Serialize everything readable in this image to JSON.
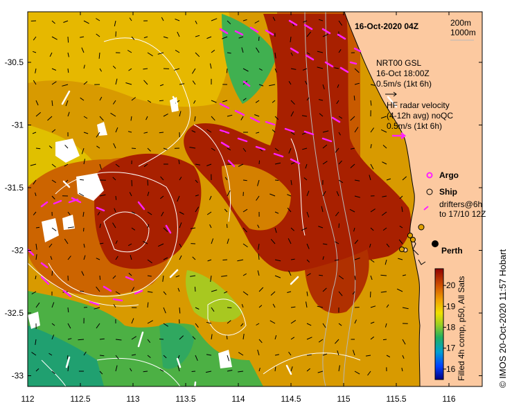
{
  "title": "16-Oct-2020 04Z",
  "isobath_legend": [
    "200m",
    "1000m"
  ],
  "nrt_legend": [
    "NRT00 GSL",
    "16-Oct 18:00Z",
    "0.5m/s (1kt 6h)"
  ],
  "hf_legend": [
    "HF radar velocity",
    "(4-12h avg) noQC",
    "0.5m/s (1kt 6h)"
  ],
  "argo_label": "Argo",
  "ship_label": "Ship",
  "drifter_legend": [
    "drifters@6h",
    "to 17/10 12Z"
  ],
  "city_label": "Perth",
  "colorbar_title": "Filled 4h comp, p50, All Sats",
  "colorbar_ticks": [
    16,
    17,
    18,
    19,
    20
  ],
  "credit": "© IMOS 20-Oct-2020 11:57 Hobart",
  "x_ticks": [
    "112",
    "112.5",
    "113",
    "113.5",
    "114",
    "114.5",
    "115",
    "115.5",
    "116"
  ],
  "y_ticks": [
    "-30.5",
    "-31",
    "-31.5",
    "-32",
    "-32.5",
    "-33"
  ],
  "colors": {
    "land": "#fcc9a0",
    "warm_core": "#a82000",
    "warm": "#cc5a00",
    "mid": "#dc9a00",
    "yellow": "#e4cc00",
    "green": "#38b040",
    "hf_arrow": "#ff20ff",
    "ship_marker": "#e0a000"
  }
}
